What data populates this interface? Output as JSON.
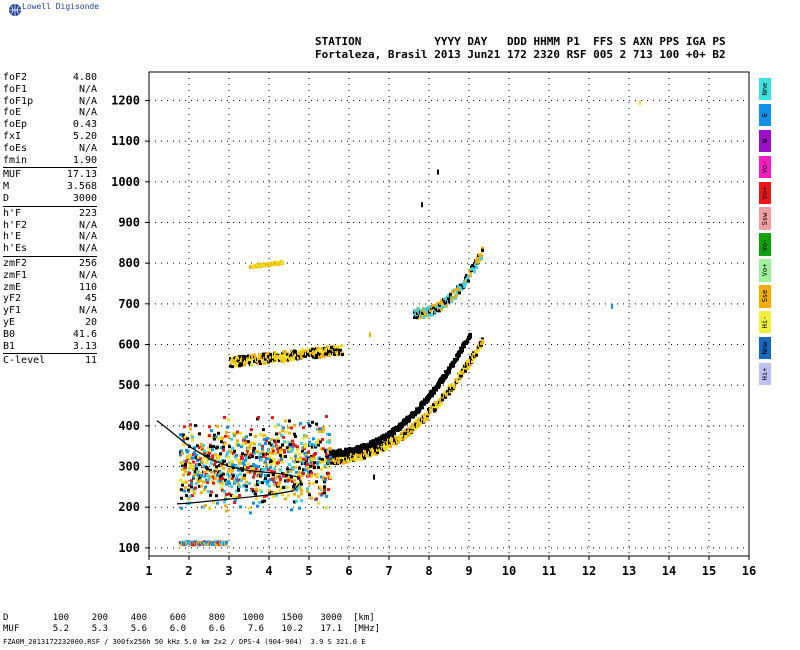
{
  "header": {
    "brand": "Lowell Digisonde",
    "line1": "STATION           YYYY DAY   DDD HHMM P1  FFS S AXN PPS IGA PS",
    "line2": "Fortaleza, Brasil 2013 Jun21 172 2320 RSF 005 2 713 100 +0+ B2"
  },
  "params": [
    {
      "name": "foF2",
      "value": "4.80"
    },
    {
      "name": "foF1",
      "value": "N/A"
    },
    {
      "name": "foF1p",
      "value": "N/A"
    },
    {
      "name": "foE",
      "value": "N/A"
    },
    {
      "name": "foEp",
      "value": "0.43"
    },
    {
      "name": "fxI",
      "value": "5.20"
    },
    {
      "name": "foEs",
      "value": "N/A"
    },
    {
      "name": "fmin",
      "value": "1.90"
    },
    {
      "name": "MUF",
      "value": "17.13",
      "sep": true
    },
    {
      "name": "M",
      "value": "3.568"
    },
    {
      "name": "D",
      "value": "3000"
    },
    {
      "name": "h'F",
      "value": "223",
      "sep": true
    },
    {
      "name": "h'F2",
      "value": "N/A"
    },
    {
      "name": "h'E",
      "value": "N/A"
    },
    {
      "name": "h'Es",
      "value": "N/A"
    },
    {
      "name": "zmF2",
      "value": "256",
      "sep": true
    },
    {
      "name": "zmF1",
      "value": "N/A"
    },
    {
      "name": "zmE",
      "value": "110"
    },
    {
      "name": "yF2",
      "value": "45"
    },
    {
      "name": "yF1",
      "value": "N/A"
    },
    {
      "name": "yE",
      "value": "20"
    },
    {
      "name": "B0",
      "value": "41.6"
    },
    {
      "name": "B1",
      "value": "3.13"
    },
    {
      "name": "C-level",
      "value": "11",
      "sep": true
    }
  ],
  "legend": [
    {
      "label": "Nne",
      "color": "#40e0e0"
    },
    {
      "label": "E",
      "color": "#1090e8"
    },
    {
      "label": "W",
      "color": "#9a10c8"
    },
    {
      "label": "Vo-",
      "color": "#f020c0"
    },
    {
      "label": "Vo+",
      "color": "#e81818"
    },
    {
      "label": "Ssw",
      "color": "#f0a0a0"
    },
    {
      "label": "Vo-",
      "color": "#10a010"
    },
    {
      "label": "Vo+",
      "color": "#a0f0a0"
    },
    {
      "label": "Sse",
      "color": "#f0b000"
    },
    {
      "label": "Hi-",
      "color": "#f0f040"
    },
    {
      "label": "Nnw",
      "color": "#1868c0"
    },
    {
      "label": "Hi+",
      "color": "#c0c0f0"
    }
  ],
  "table": {
    "d_label": "D",
    "d_values": [
      "100",
      "200",
      "400",
      "600",
      "800",
      "1000",
      "1500",
      "3000"
    ],
    "d_unit": "[km]",
    "muf_label": "MUF",
    "muf_values": [
      "5.2",
      "5.3",
      "5.6",
      "6.0",
      "6.6",
      "7.6",
      "10.2",
      "17.1"
    ],
    "muf_unit": "[MHz]"
  },
  "footer": "FZA0M_2013172232000.RSF / 300fx256h 50 kHz 5.0 km 2x2 / DPS-4 (904-904)  3.9 S 321.6 E",
  "chart_data": {
    "type": "scatter",
    "xlim": [
      1,
      16
    ],
    "ylim": [
      80,
      1270
    ],
    "xticks": [
      1,
      2,
      3,
      4,
      5,
      6,
      7,
      8,
      9,
      10,
      11,
      12,
      13,
      14,
      15,
      16
    ],
    "yticks": [
      100,
      200,
      300,
      400,
      500,
      600,
      700,
      800,
      900,
      1000,
      1100,
      1200
    ],
    "grid": true,
    "colors": {
      "black": "#000000",
      "orange": "#f0b000",
      "yellow": "#f0e020",
      "cyan": "#40d0e0",
      "red": "#e81818",
      "blue": "#1090e8"
    },
    "traces": [
      {
        "layer": "E-trace",
        "x_start": 1.75,
        "x_end": 2.9,
        "h_start": 115,
        "h_end": 115,
        "spread": 4,
        "colors": [
          "cyan",
          "blue",
          "red",
          "orange"
        ]
      },
      {
        "layer": "F2-o",
        "x_start": 5.4,
        "x_end": 9.3,
        "h_start": 320,
        "h_end": 610,
        "spread": 10,
        "colors": [
          "orange",
          "yellow",
          "black"
        ]
      },
      {
        "layer": "F2-x-upper",
        "x_start": 5.4,
        "x_end": 9.0,
        "h_start": 335,
        "h_end": 630,
        "spread": 8,
        "colors": [
          "black"
        ]
      },
      {
        "layer": "F2-2hop",
        "x_start": 7.6,
        "x_end": 9.3,
        "h_start": 680,
        "h_end": 830,
        "spread": 12,
        "colors": [
          "orange",
          "black",
          "cyan"
        ]
      },
      {
        "layer": "F-2hop-low",
        "x_start": 3.0,
        "x_end": 5.8,
        "h_start": 560,
        "h_end": 590,
        "spread": 12,
        "colors": [
          "orange",
          "yellow",
          "black"
        ]
      },
      {
        "layer": "F-3hop",
        "x_start": 3.5,
        "x_end": 4.3,
        "h_start": 795,
        "h_end": 805,
        "spread": 3,
        "colors": [
          "orange",
          "yellow"
        ]
      },
      {
        "layer": "F-spread",
        "x_start": 1.75,
        "x_end": 5.5,
        "h_start": 300,
        "h_end": 320,
        "spread": 25,
        "colors": [
          "orange",
          "yellow",
          "cyan",
          "blue",
          "red",
          "black"
        ]
      }
    ],
    "profile": [
      {
        "x": 1.2,
        "h": 413
      },
      {
        "x": 1.5,
        "h": 390
      },
      {
        "x": 2.0,
        "h": 350
      },
      {
        "x": 2.5,
        "h": 320
      },
      {
        "x": 3.0,
        "h": 300
      },
      {
        "x": 3.5,
        "h": 290
      },
      {
        "x": 4.0,
        "h": 285
      },
      {
        "x": 4.3,
        "h": 282
      },
      {
        "x": 4.7,
        "h": 275
      },
      {
        "x": 4.8,
        "h": 262
      },
      {
        "x": 4.6,
        "h": 240
      },
      {
        "x": 4.0,
        "h": 230
      },
      {
        "x": 3.0,
        "h": 220
      },
      {
        "x": 2.0,
        "h": 210
      },
      {
        "x": 1.7,
        "h": 208
      }
    ],
    "profile_label": "",
    "scattered_points": [
      {
        "x": 13.25,
        "h": 1200,
        "color": "yellow"
      },
      {
        "x": 12.55,
        "h": 700,
        "color": "blue"
      },
      {
        "x": 8.2,
        "h": 1030,
        "color": "black"
      },
      {
        "x": 7.8,
        "h": 950,
        "color": "black"
      },
      {
        "x": 6.5,
        "h": 630,
        "color": "orange"
      },
      {
        "x": 6.6,
        "h": 280,
        "color": "black"
      }
    ]
  }
}
